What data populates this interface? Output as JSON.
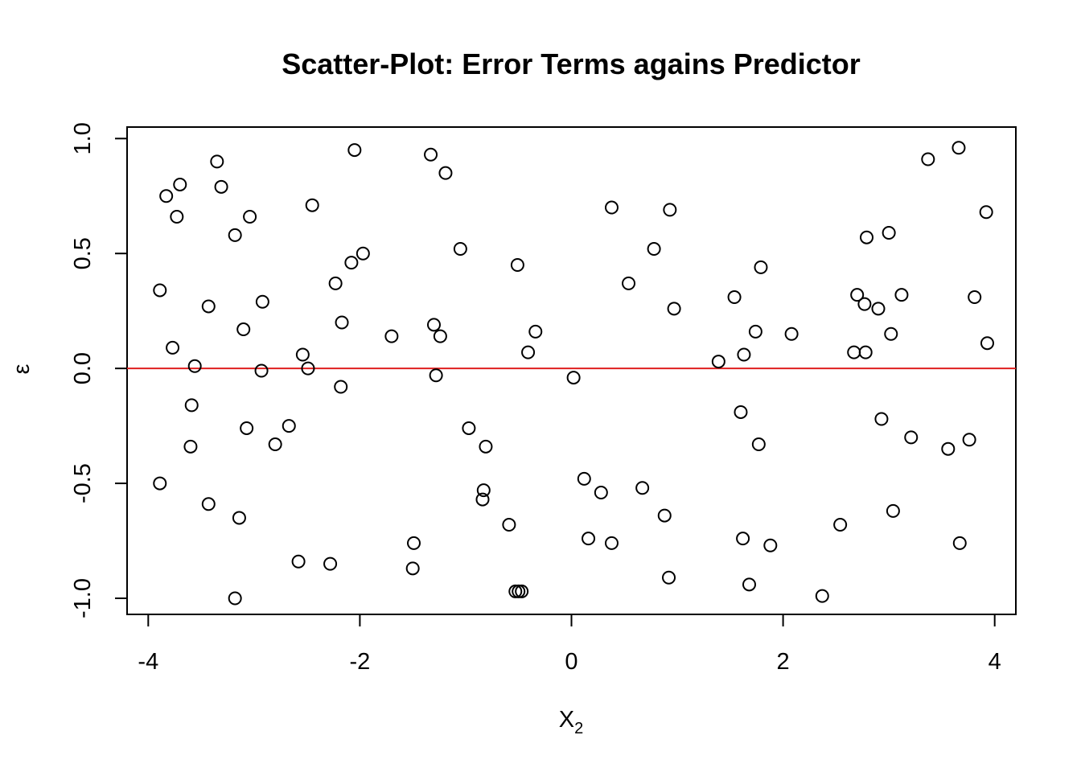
{
  "chart_data": {
    "type": "scatter",
    "title": "Scatter-Plot: Error Terms agains Predictor",
    "xlabel": "X",
    "xlabel_subscript": "2",
    "ylabel": "ε",
    "xlim": [
      -4.2,
      4.2
    ],
    "ylim": [
      -1.07,
      1.05
    ],
    "x_ticks": [
      -4,
      -2,
      0,
      2,
      4
    ],
    "x_tick_labels": [
      "-4",
      "-2",
      "0",
      "2",
      "4"
    ],
    "y_ticks": [
      -1.0,
      -0.5,
      0.0,
      0.5,
      1.0
    ],
    "y_tick_labels": [
      "-1.0",
      "-0.5",
      "0.0",
      "0.5",
      "1.0"
    ],
    "reference_line": {
      "y": 0,
      "color": "#DF1F1F"
    },
    "point_style": {
      "shape": "open-circle",
      "color": "#000000"
    },
    "grid": false,
    "legend": "none",
    "points": [
      {
        "x": -3.89,
        "y": -0.5
      },
      {
        "x": -3.89,
        "y": 0.34
      },
      {
        "x": -3.83,
        "y": 0.75
      },
      {
        "x": -3.77,
        "y": 0.09
      },
      {
        "x": -3.73,
        "y": 0.66
      },
      {
        "x": -3.7,
        "y": 0.8
      },
      {
        "x": -3.6,
        "y": -0.34
      },
      {
        "x": -3.59,
        "y": -0.16
      },
      {
        "x": -3.56,
        "y": 0.01
      },
      {
        "x": -3.43,
        "y": 0.27
      },
      {
        "x": -3.43,
        "y": -0.59
      },
      {
        "x": -3.35,
        "y": 0.9
      },
      {
        "x": -3.31,
        "y": 0.79
      },
      {
        "x": -3.18,
        "y": 0.58
      },
      {
        "x": -3.18,
        "y": -1.0
      },
      {
        "x": -3.14,
        "y": -0.65
      },
      {
        "x": -3.1,
        "y": 0.17
      },
      {
        "x": -3.07,
        "y": -0.26
      },
      {
        "x": -3.04,
        "y": 0.66
      },
      {
        "x": -2.93,
        "y": -0.01
      },
      {
        "x": -2.92,
        "y": 0.29
      },
      {
        "x": -2.8,
        "y": -0.33
      },
      {
        "x": -2.67,
        "y": -0.25
      },
      {
        "x": -2.58,
        "y": -0.84
      },
      {
        "x": -2.54,
        "y": 0.06
      },
      {
        "x": -2.49,
        "y": 0.0
      },
      {
        "x": -2.45,
        "y": 0.71
      },
      {
        "x": -2.28,
        "y": -0.85
      },
      {
        "x": -2.23,
        "y": 0.37
      },
      {
        "x": -2.18,
        "y": -0.08
      },
      {
        "x": -2.17,
        "y": 0.2
      },
      {
        "x": -2.08,
        "y": 0.46
      },
      {
        "x": -2.05,
        "y": 0.95
      },
      {
        "x": -1.97,
        "y": 0.5
      },
      {
        "x": -1.7,
        "y": 0.14
      },
      {
        "x": -1.5,
        "y": -0.87
      },
      {
        "x": -1.49,
        "y": -0.76
      },
      {
        "x": -1.33,
        "y": 0.93
      },
      {
        "x": -1.3,
        "y": 0.19
      },
      {
        "x": -1.28,
        "y": -0.03
      },
      {
        "x": -1.24,
        "y": 0.14
      },
      {
        "x": -1.19,
        "y": 0.85
      },
      {
        "x": -1.05,
        "y": 0.52
      },
      {
        "x": -0.97,
        "y": -0.26
      },
      {
        "x": -0.84,
        "y": -0.57
      },
      {
        "x": -0.83,
        "y": -0.53
      },
      {
        "x": -0.81,
        "y": -0.34
      },
      {
        "x": -0.59,
        "y": -0.68
      },
      {
        "x": -0.53,
        "y": -0.97
      },
      {
        "x": -0.51,
        "y": 0.45
      },
      {
        "x": -0.5,
        "y": -0.97
      },
      {
        "x": -0.47,
        "y": -0.97
      },
      {
        "x": -0.41,
        "y": 0.07
      },
      {
        "x": -0.34,
        "y": 0.16
      },
      {
        "x": 0.02,
        "y": -0.04
      },
      {
        "x": 0.12,
        "y": -0.48
      },
      {
        "x": 0.16,
        "y": -0.74
      },
      {
        "x": 0.28,
        "y": -0.54
      },
      {
        "x": 0.38,
        "y": -0.76
      },
      {
        "x": 0.38,
        "y": 0.7
      },
      {
        "x": 0.54,
        "y": 0.37
      },
      {
        "x": 0.67,
        "y": -0.52
      },
      {
        "x": 0.78,
        "y": 0.52
      },
      {
        "x": 0.88,
        "y": -0.64
      },
      {
        "x": 0.92,
        "y": -0.91
      },
      {
        "x": 0.93,
        "y": 0.69
      },
      {
        "x": 0.97,
        "y": 0.26
      },
      {
        "x": 1.39,
        "y": 0.03
      },
      {
        "x": 1.54,
        "y": 0.31
      },
      {
        "x": 1.6,
        "y": -0.19
      },
      {
        "x": 1.62,
        "y": -0.74
      },
      {
        "x": 1.63,
        "y": 0.06
      },
      {
        "x": 1.68,
        "y": -0.94
      },
      {
        "x": 1.74,
        "y": 0.16
      },
      {
        "x": 1.77,
        "y": -0.33
      },
      {
        "x": 1.79,
        "y": 0.44
      },
      {
        "x": 1.88,
        "y": -0.77
      },
      {
        "x": 2.08,
        "y": 0.15
      },
      {
        "x": 2.37,
        "y": -0.99
      },
      {
        "x": 2.54,
        "y": -0.68
      },
      {
        "x": 2.67,
        "y": 0.07
      },
      {
        "x": 2.7,
        "y": 0.32
      },
      {
        "x": 2.77,
        "y": 0.28
      },
      {
        "x": 2.78,
        "y": 0.07
      },
      {
        "x": 2.79,
        "y": 0.57
      },
      {
        "x": 2.9,
        "y": 0.26
      },
      {
        "x": 2.93,
        "y": -0.22
      },
      {
        "x": 3.0,
        "y": 0.59
      },
      {
        "x": 3.02,
        "y": 0.15
      },
      {
        "x": 3.04,
        "y": -0.62
      },
      {
        "x": 3.12,
        "y": 0.32
      },
      {
        "x": 3.21,
        "y": -0.3
      },
      {
        "x": 3.37,
        "y": 0.91
      },
      {
        "x": 3.56,
        "y": -0.35
      },
      {
        "x": 3.66,
        "y": 0.96
      },
      {
        "x": 3.67,
        "y": -0.76
      },
      {
        "x": 3.76,
        "y": -0.31
      },
      {
        "x": 3.81,
        "y": 0.31
      },
      {
        "x": 3.92,
        "y": 0.68
      },
      {
        "x": 3.93,
        "y": 0.11
      }
    ]
  }
}
